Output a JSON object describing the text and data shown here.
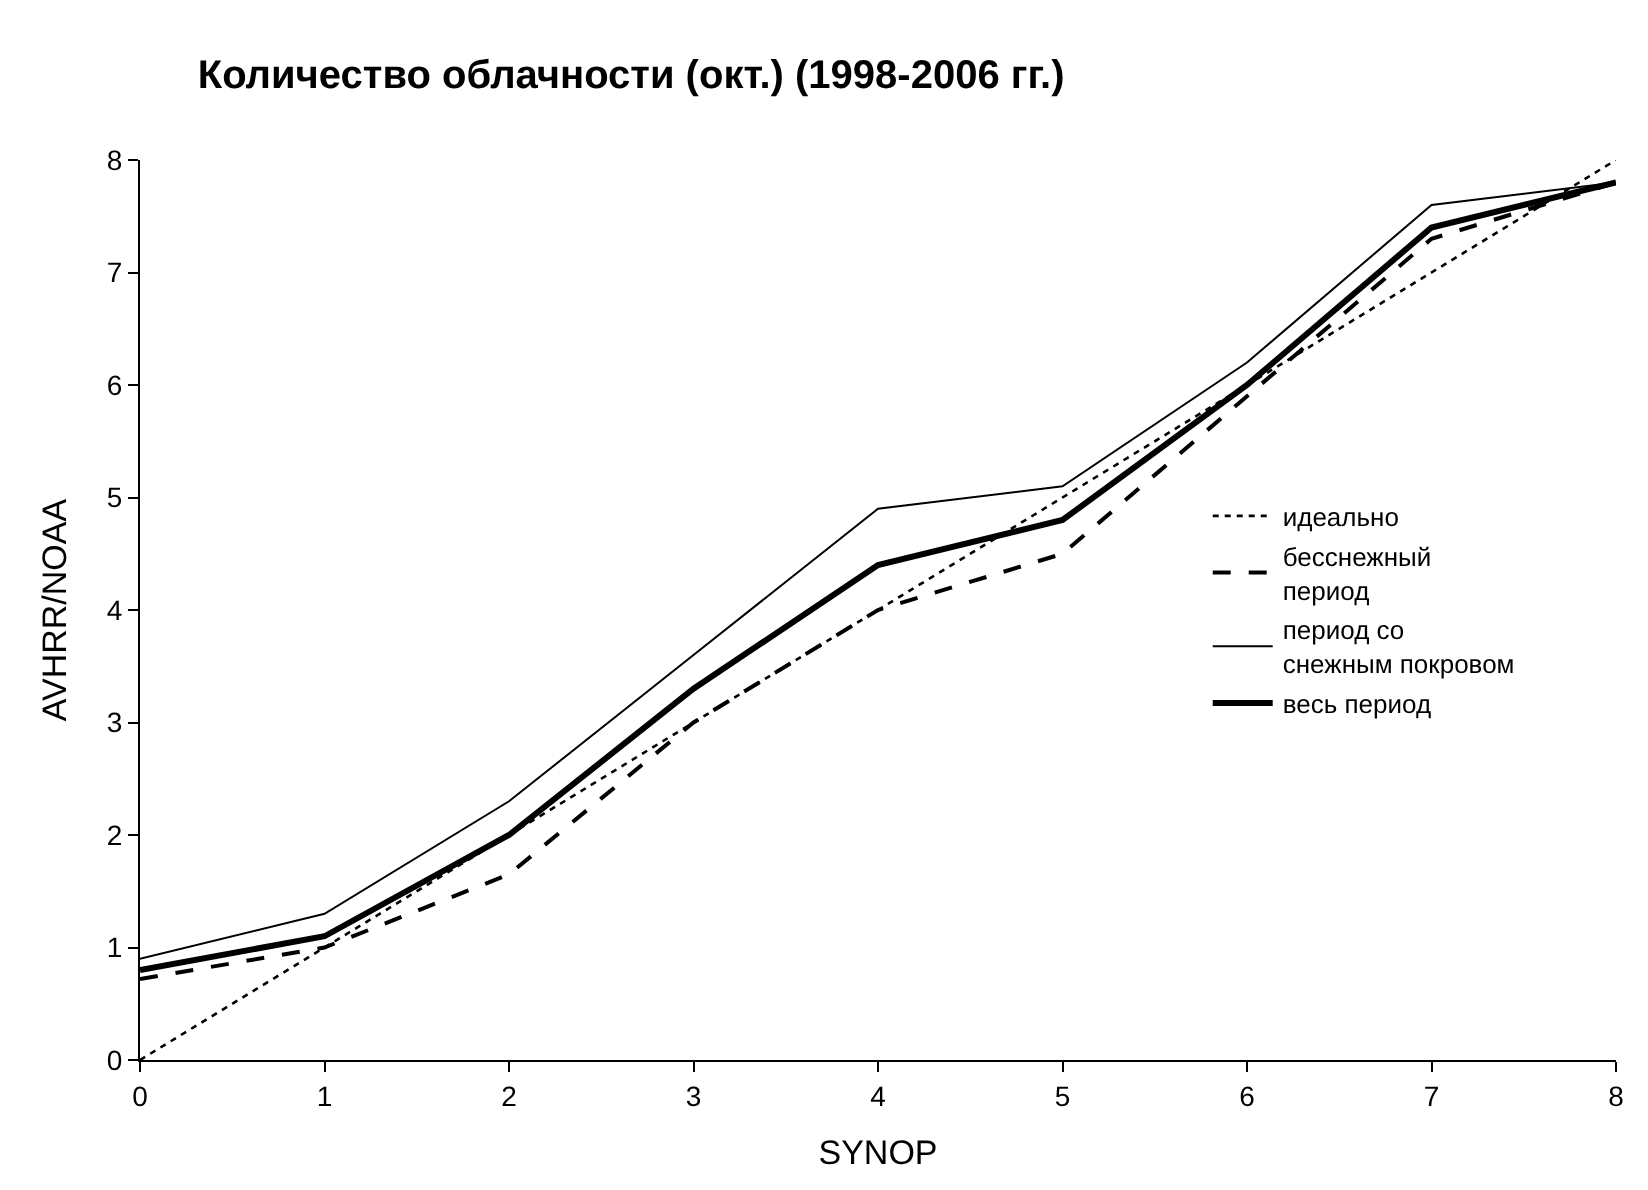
{
  "chart_data": {
    "type": "line",
    "title": "Количество облачности (окт.) (1998-2006 гг.)",
    "xlabel": "SYNOP",
    "ylabel": "AVHRR/NOAA",
    "x": [
      0,
      1,
      2,
      3,
      4,
      5,
      6,
      7,
      8
    ],
    "series": [
      {
        "name": "идеально",
        "color": "#000000",
        "line_style": "dotted",
        "values": [
          0,
          1,
          2,
          3,
          4,
          5,
          6,
          7,
          8
        ]
      },
      {
        "name": "бесснежный\nпериод",
        "color": "#000000",
        "line_style": "dashed",
        "values": [
          0.72,
          1.0,
          1.65,
          3.0,
          4.0,
          4.5,
          5.9,
          7.3,
          7.8
        ]
      },
      {
        "name": "период со\nснежным покровом",
        "color": "#000000",
        "line_style": "solid",
        "values": [
          0.9,
          1.3,
          2.3,
          3.6,
          4.9,
          5.1,
          6.2,
          7.6,
          7.8
        ]
      },
      {
        "name": "весь период",
        "color": "#000000",
        "line_style": "solid",
        "values": [
          0.8,
          1.1,
          2.0,
          3.3,
          4.4,
          4.8,
          6.0,
          7.4,
          7.8
        ]
      }
    ],
    "xlim": [
      0,
      8
    ],
    "xticks": [
      0,
      1,
      2,
      3,
      4,
      5,
      6,
      7,
      8
    ],
    "ylim": [
      0,
      8
    ],
    "yticks": [
      0,
      1,
      2,
      3,
      4,
      5,
      6,
      7,
      8
    ],
    "legend": "right",
    "marker": "none"
  }
}
